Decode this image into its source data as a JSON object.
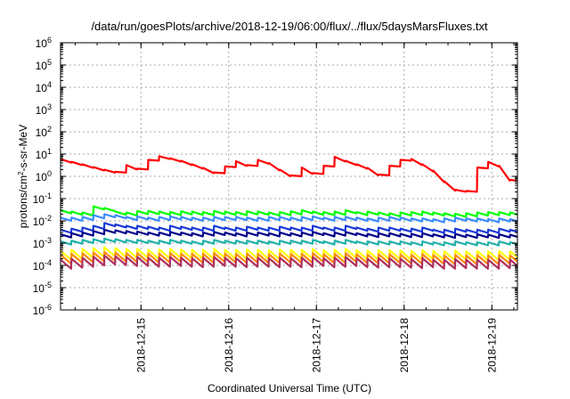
{
  "chart_data": {
    "type": "line",
    "title": "/data/run/goesPlots/archive/2018-12-19/06:00/flux/../flux/5daysMarsFluxes.txt",
    "xlabel": "Coordinated Universal Time (UTC)",
    "ylabel": {
      "base": "protons/cm",
      "sup": "2",
      "rest": "-s-sr-MeV"
    },
    "y_scale": "log",
    "ylim": [
      1e-06,
      1000000.0
    ],
    "y_tick_exponents": [
      -6,
      -5,
      -4,
      -3,
      -2,
      -1,
      0,
      1,
      2,
      3,
      4,
      5,
      6
    ],
    "y_tick_base": "10",
    "xlim": [
      "2018-12-14T02:00",
      "2018-12-19T07:00"
    ],
    "x_ticks": [
      "2018-12-15",
      "2018-12-16",
      "2018-12-17",
      "2018-12-18",
      "2018-12-19"
    ],
    "grid": true,
    "sawtooth": {
      "step_start": "2018-12-14T02:00",
      "step_hours": 3,
      "count": 42,
      "decay_fraction": 0.72
    },
    "series": [
      {
        "color": "#00ff00",
        "values": [
          0.03,
          0.026,
          0.024,
          0.045,
          0.038,
          0.026,
          0.024,
          0.028,
          0.028,
          0.026,
          0.025,
          0.027,
          0.026,
          0.025,
          0.028,
          0.026,
          0.025,
          0.027,
          0.026,
          0.024,
          0.025,
          0.027,
          0.03,
          0.026,
          0.025,
          0.026,
          0.03,
          0.025,
          0.026,
          0.024,
          0.022,
          0.024,
          0.025,
          0.026,
          0.024,
          0.022,
          0.021,
          0.022,
          0.024,
          0.025,
          0.025,
          0.024
        ]
      },
      {
        "color": "#3d8cff",
        "values": [
          0.014,
          0.014,
          0.015,
          0.018,
          0.02,
          0.018,
          0.015,
          0.016,
          0.014,
          0.015,
          0.016,
          0.015,
          0.014,
          0.014,
          0.015,
          0.015,
          0.015,
          0.014,
          0.014,
          0.015,
          0.015,
          0.014,
          0.015,
          0.016,
          0.014,
          0.015,
          0.015,
          0.014,
          0.013,
          0.014,
          0.015,
          0.014,
          0.013,
          0.013,
          0.012,
          0.013,
          0.014,
          0.013,
          0.013,
          0.012,
          0.013,
          0.012
        ]
      },
      {
        "color": "#1838d8",
        "values": [
          0.004,
          0.0045,
          0.005,
          0.006,
          0.008,
          0.007,
          0.006,
          0.006,
          0.0055,
          0.005,
          0.006,
          0.0055,
          0.005,
          0.005,
          0.006,
          0.005,
          0.005,
          0.0055,
          0.005,
          0.005,
          0.0055,
          0.005,
          0.005,
          0.006,
          0.005,
          0.005,
          0.006,
          0.005,
          0.0045,
          0.005,
          0.005,
          0.0045,
          0.0045,
          0.005,
          0.004,
          0.004,
          0.0045,
          0.004,
          0.004,
          0.004,
          0.0045,
          0.004
        ]
      },
      {
        "color": "#00008b",
        "values": [
          0.0025,
          0.0028,
          0.003,
          0.0035,
          0.004,
          0.0038,
          0.0035,
          0.0033,
          0.003,
          0.003,
          0.0032,
          0.003,
          0.0028,
          0.003,
          0.0032,
          0.003,
          0.0028,
          0.003,
          0.003,
          0.0028,
          0.003,
          0.0028,
          0.003,
          0.0032,
          0.0028,
          0.003,
          0.0032,
          0.0028,
          0.0026,
          0.0028,
          0.0028,
          0.0026,
          0.0026,
          0.0028,
          0.0025,
          0.0024,
          0.0026,
          0.0024,
          0.0025,
          0.0024,
          0.0025,
          0.0024
        ]
      },
      {
        "color": "#20b2aa",
        "values": [
          0.0012,
          0.0013,
          0.0014,
          0.0015,
          0.0016,
          0.0015,
          0.0014,
          0.0014,
          0.0013,
          0.0013,
          0.0014,
          0.0013,
          0.0012,
          0.0013,
          0.0014,
          0.0013,
          0.0013,
          0.0013,
          0.0013,
          0.0012,
          0.0013,
          0.0013,
          0.0013,
          0.0014,
          0.0012,
          0.0013,
          0.0014,
          0.0012,
          0.0012,
          0.0012,
          0.0012,
          0.0012,
          0.0011,
          0.0012,
          0.0011,
          0.0011,
          0.0012,
          0.0011,
          0.0011,
          0.0011,
          0.0012,
          0.0011
        ]
      },
      {
        "color": "#ffff00",
        "values": [
          0.00045,
          0.0005,
          0.00055,
          0.0006,
          0.00065,
          0.0006,
          0.00055,
          0.00055,
          0.0005,
          0.00052,
          0.00055,
          0.00052,
          0.0005,
          0.0005,
          0.00055,
          0.0005,
          0.0005,
          0.00052,
          0.0005,
          0.00048,
          0.00052,
          0.0005,
          0.0005,
          0.00055,
          0.00048,
          0.0005,
          0.00055,
          0.00048,
          0.00046,
          0.00048,
          0.00048,
          0.00046,
          0.00045,
          0.00048,
          0.00044,
          0.00043,
          0.00046,
          0.00043,
          0.00044,
          0.00043,
          0.00045,
          0.00043
        ]
      },
      {
        "color": "#ff8c00",
        "values": [
          0.0003,
          0.00033,
          0.00035,
          0.00038,
          0.0004,
          0.00038,
          0.00036,
          0.00036,
          0.00034,
          0.00034,
          0.00036,
          0.00034,
          0.00033,
          0.00033,
          0.00036,
          0.00034,
          0.00033,
          0.00034,
          0.00033,
          0.00032,
          0.00034,
          0.00033,
          0.00033,
          0.00036,
          0.00032,
          0.00033,
          0.00036,
          0.00032,
          0.00031,
          0.00032,
          0.00032,
          0.00031,
          0.0003,
          0.00032,
          0.00029,
          0.00028,
          0.0003,
          0.00028,
          0.00029,
          0.00028,
          0.0003,
          0.00028
        ]
      },
      {
        "color": "#b03060",
        "values": [
          0.00018,
          0.0002,
          0.00022,
          0.00025,
          0.00028,
          0.00026,
          0.00024,
          0.00024,
          0.00022,
          0.00022,
          0.00024,
          0.00022,
          0.00021,
          0.00022,
          0.00024,
          0.00022,
          0.00021,
          0.00022,
          0.00022,
          0.00021,
          0.00022,
          0.00021,
          0.00022,
          0.00024,
          0.00021,
          0.00022,
          0.00024,
          0.00021,
          0.0002,
          0.00021,
          0.00021,
          0.0002,
          0.00019,
          0.00021,
          0.00018,
          0.00018,
          0.00019,
          0.00018,
          0.00018,
          0.00018,
          0.00019,
          0.00018
        ]
      },
      {
        "color": "#ff0000",
        "values": [
          6.0,
          4.5,
          3.5,
          2.6,
          2.0,
          1.6,
          3.2,
          2.2,
          5.5,
          8.0,
          6.5,
          5.0,
          3.5,
          2.4,
          1.5,
          2.8,
          4.8,
          3.2,
          5.5,
          4.0,
          2.0,
          1.1,
          2.5,
          1.4,
          3.0,
          7.5,
          5.0,
          3.5,
          2.4,
          1.2,
          3.0,
          5.5,
          6.0,
          3.5,
          1.8,
          0.6,
          0.25,
          0.22,
          2.5,
          4.5,
          3.0,
          0.7
        ]
      }
    ]
  }
}
